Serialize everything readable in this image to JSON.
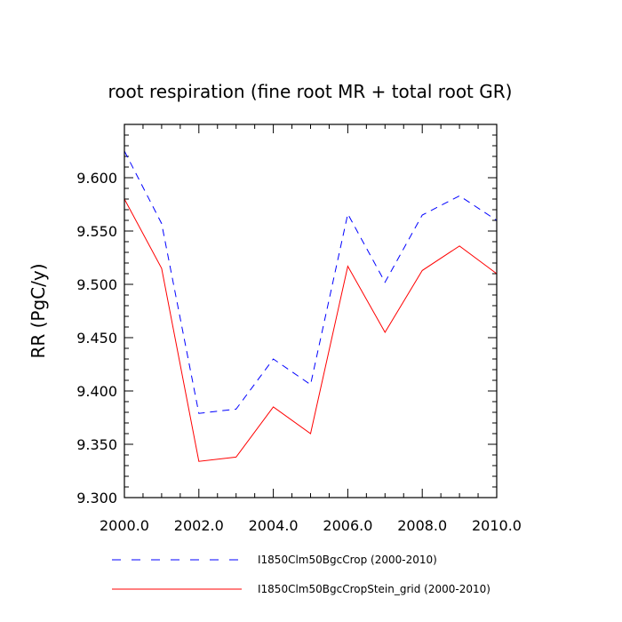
{
  "chart_data": {
    "type": "line",
    "title": "root respiration (fine root MR + total root GR)",
    "xlabel": "",
    "ylabel": "RR  (PgC/y)",
    "xlim": [
      2000,
      2010
    ],
    "ylim": [
      9.3,
      9.65
    ],
    "x_ticks": [
      "2000.0",
      "2002.0",
      "2004.0",
      "2006.0",
      "2008.0",
      "2010.0"
    ],
    "y_ticks": [
      "9.300",
      "9.350",
      "9.400",
      "9.450",
      "9.500",
      "9.550",
      "9.600"
    ],
    "x": [
      2000,
      2001,
      2002,
      2003,
      2004,
      2005,
      2006,
      2007,
      2008,
      2009,
      2010
    ],
    "series": [
      {
        "name": "I1850Clm50BgcCrop (2000-2010)",
        "color": "#0000ff",
        "dash": "dashed",
        "values": [
          9.625,
          9.557,
          9.379,
          9.383,
          9.43,
          9.406,
          9.566,
          9.502,
          9.565,
          9.583,
          9.56
        ]
      },
      {
        "name": "I1850Clm50BgcCropStein_grid (2000-2010)",
        "color": "#ff0000",
        "dash": "solid",
        "values": [
          9.58,
          9.515,
          9.334,
          9.338,
          9.385,
          9.36,
          9.517,
          9.455,
          9.513,
          9.536,
          9.51
        ]
      }
    ],
    "grid": false,
    "legend_position": "bottom"
  }
}
